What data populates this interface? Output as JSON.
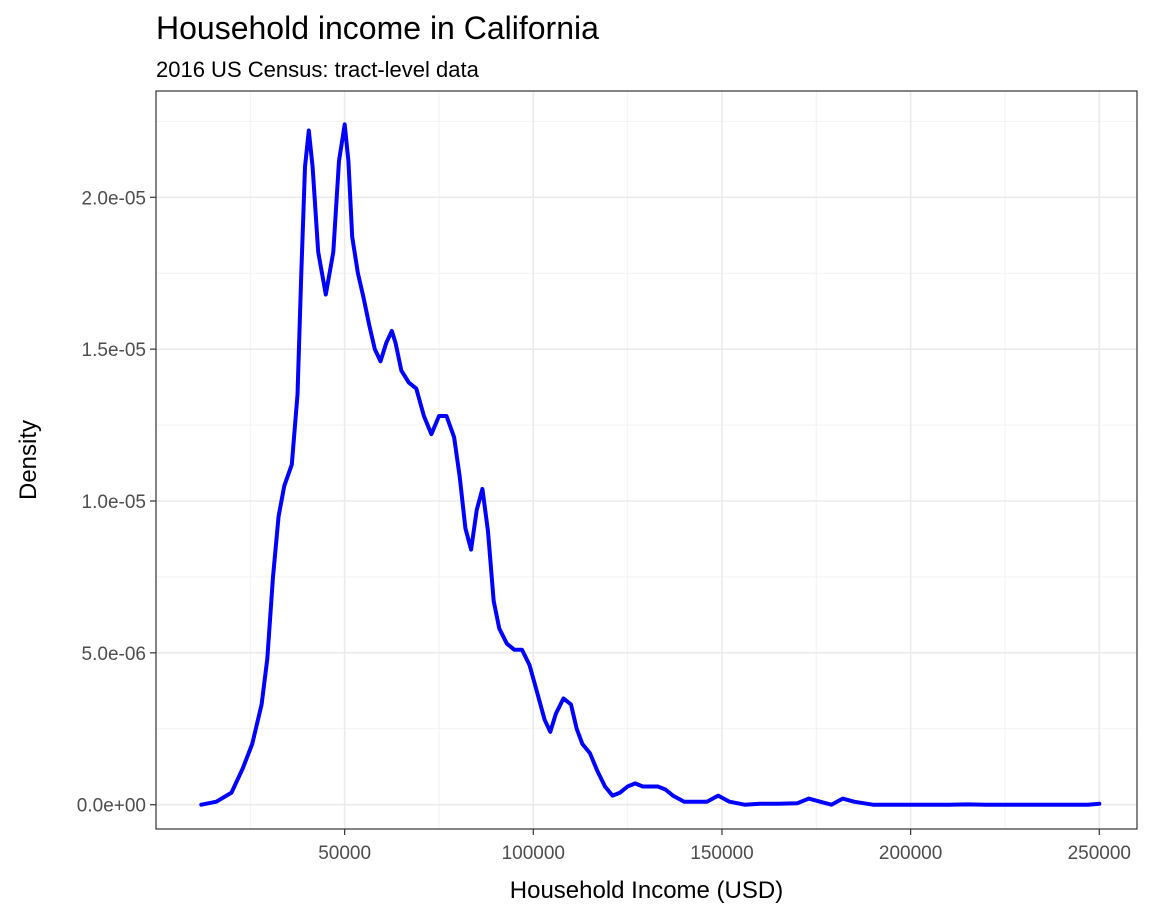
{
  "chart_data": {
    "type": "line",
    "title": "Household income in California",
    "subtitle": "2016 US Census: tract-level data",
    "xlabel": "Household Income (USD)",
    "ylabel": "Density",
    "xlim": [
      0,
      260000
    ],
    "ylim": [
      -8e-07,
      2.35e-05
    ],
    "x_ticks": [
      50000,
      100000,
      150000,
      200000,
      250000
    ],
    "x_tick_labels": [
      "50000",
      "100000",
      "150000",
      "200000",
      "250000"
    ],
    "y_ticks": [
      0,
      5e-06,
      1e-05,
      1.5e-05,
      2e-05
    ],
    "y_tick_labels": [
      "0.0e+00",
      "5.0e-06",
      "1.0e-05",
      "1.5e-05",
      "2.0e-05"
    ],
    "grid": true,
    "legend": "none",
    "line_color": "#0000ff",
    "series": [
      {
        "x": [
          12000,
          16000,
          20000,
          23000,
          25500,
          28000,
          29500,
          31000,
          32500,
          34000,
          36000,
          37500,
          38500,
          39500,
          40500,
          41500,
          43000,
          45000,
          47000,
          48500,
          50000,
          51000,
          52000,
          53500,
          55000,
          56500,
          58000,
          59500,
          61000,
          62500,
          63500,
          65000,
          67000,
          69000,
          71000,
          73000,
          75000,
          77000,
          79000,
          80500,
          82000,
          83500,
          85000,
          86500,
          88000,
          89500,
          91000,
          93000,
          95000,
          97000,
          99000,
          101000,
          103000,
          104500,
          106000,
          108000,
          110000,
          111500,
          113000,
          115000,
          117000,
          119000,
          121000,
          123000,
          125000,
          127000,
          129000,
          131000,
          133000,
          135000,
          137000,
          140000,
          143000,
          146000,
          149000,
          152000,
          156000,
          160000,
          165000,
          170000,
          173000,
          176000,
          179000,
          182000,
          185000,
          190000,
          200000,
          210000,
          215000,
          220000,
          230000,
          240000,
          247000,
          250000
        ],
        "y": [
          0.0,
          1e-07,
          4e-07,
          1.2e-06,
          2e-06,
          3.3e-06,
          4.8e-06,
          7.5e-06,
          9.5e-06,
          1.05e-05,
          1.12e-05,
          1.35e-05,
          1.75e-05,
          2.1e-05,
          2.22e-05,
          2.1e-05,
          1.82e-05,
          1.68e-05,
          1.82e-05,
          2.12e-05,
          2.24e-05,
          2.12e-05,
          1.87e-05,
          1.75e-05,
          1.67e-05,
          1.58e-05,
          1.5e-05,
          1.46e-05,
          1.52e-05,
          1.56e-05,
          1.52e-05,
          1.43e-05,
          1.39e-05,
          1.37e-05,
          1.28e-05,
          1.22e-05,
          1.28e-05,
          1.28e-05,
          1.21e-05,
          1.08e-05,
          9.1e-06,
          8.4e-06,
          9.7e-06,
          1.04e-05,
          9e-06,
          6.7e-06,
          5.8e-06,
          5.3e-06,
          5.1e-06,
          5.1e-06,
          4.6e-06,
          3.7e-06,
          2.8e-06,
          2.4e-06,
          3e-06,
          3.5e-06,
          3.3e-06,
          2.5e-06,
          2e-06,
          1.7e-06,
          1.1e-06,
          6e-07,
          3e-07,
          4e-07,
          6e-07,
          7e-07,
          6e-07,
          6e-07,
          6e-07,
          5e-07,
          3e-07,
          1e-07,
          1e-07,
          1e-07,
          3e-07,
          1e-07,
          0.0,
          3e-08,
          3e-08,
          5e-08,
          2e-07,
          1e-07,
          0.0,
          2e-07,
          1e-07,
          0.0,
          0.0,
          0.0,
          1e-08,
          0.0,
          0.0,
          0.0,
          0.0,
          3e-08
        ]
      }
    ]
  }
}
